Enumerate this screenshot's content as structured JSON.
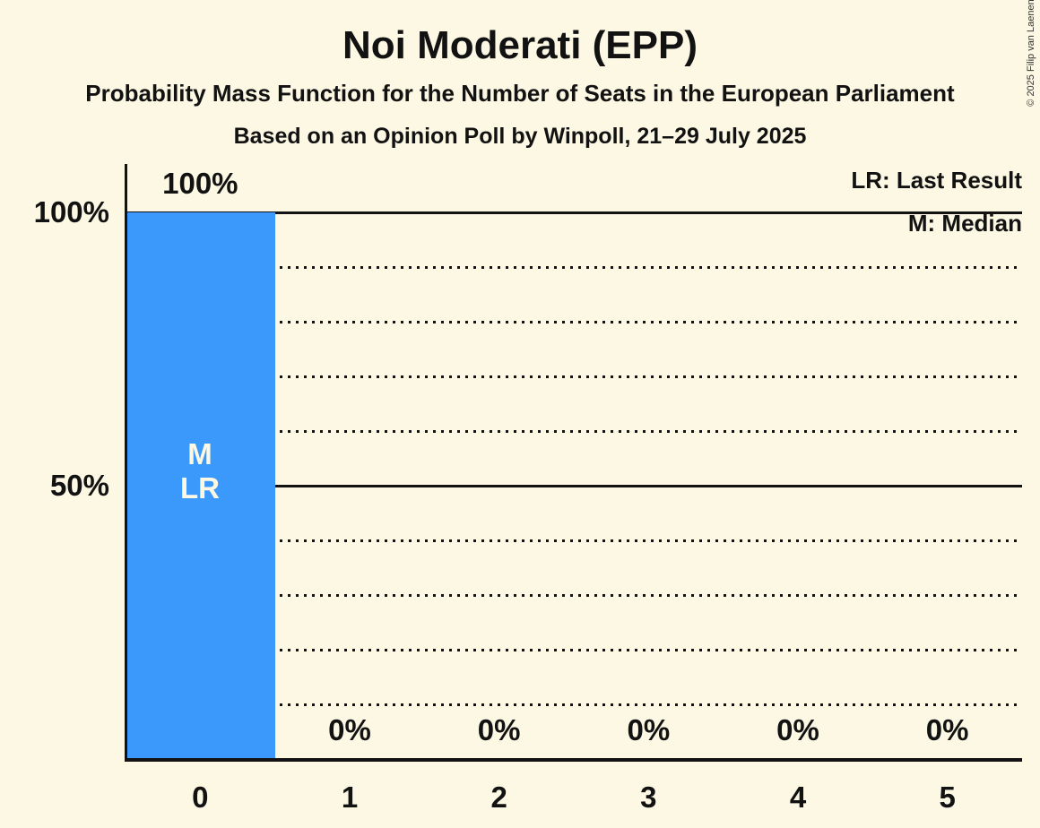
{
  "header": {
    "title": "Noi Moderati (EPP)",
    "subtitle": "Probability Mass Function for the Number of Seats in the European Parliament",
    "poll_line": "Based on an Opinion Poll by Winpoll, 21–29 July 2025"
  },
  "legend": {
    "last_result": "LR: Last Result",
    "median": "M: Median"
  },
  "copyright": "© 2025 Filip van Laenen",
  "chart_data": {
    "type": "bar",
    "title": "Noi Moderati (EPP)",
    "categories": [
      "0",
      "1",
      "2",
      "3",
      "4",
      "5"
    ],
    "values": [
      100,
      0,
      0,
      0,
      0,
      0
    ],
    "value_labels": [
      "100%",
      "0%",
      "0%",
      "0%",
      "0%",
      "0%"
    ],
    "xlabel": "",
    "ylabel": "",
    "ylim": [
      0,
      100
    ],
    "y_axis_ticks": [
      {
        "value": 100,
        "label": "100%"
      },
      {
        "value": 50,
        "label": "50%"
      }
    ],
    "gridlines": [
      {
        "value": 100,
        "style": "solid"
      },
      {
        "value": 90,
        "style": "dotted"
      },
      {
        "value": 80,
        "style": "dotted"
      },
      {
        "value": 70,
        "style": "dotted"
      },
      {
        "value": 60,
        "style": "dotted"
      },
      {
        "value": 50,
        "style": "solid"
      },
      {
        "value": 40,
        "style": "dotted"
      },
      {
        "value": 30,
        "style": "dotted"
      },
      {
        "value": 20,
        "style": "dotted"
      },
      {
        "value": 10,
        "style": "dotted"
      }
    ],
    "grid": "horizontal",
    "legend_position": "top-right",
    "bar_color": "#3A99FA",
    "bar_label_color": "#FCF8E3",
    "background_color": "#FCF8E3",
    "annotations": {
      "annotated_category": "0",
      "median_marker": "M",
      "last_result_marker": "LR"
    }
  }
}
